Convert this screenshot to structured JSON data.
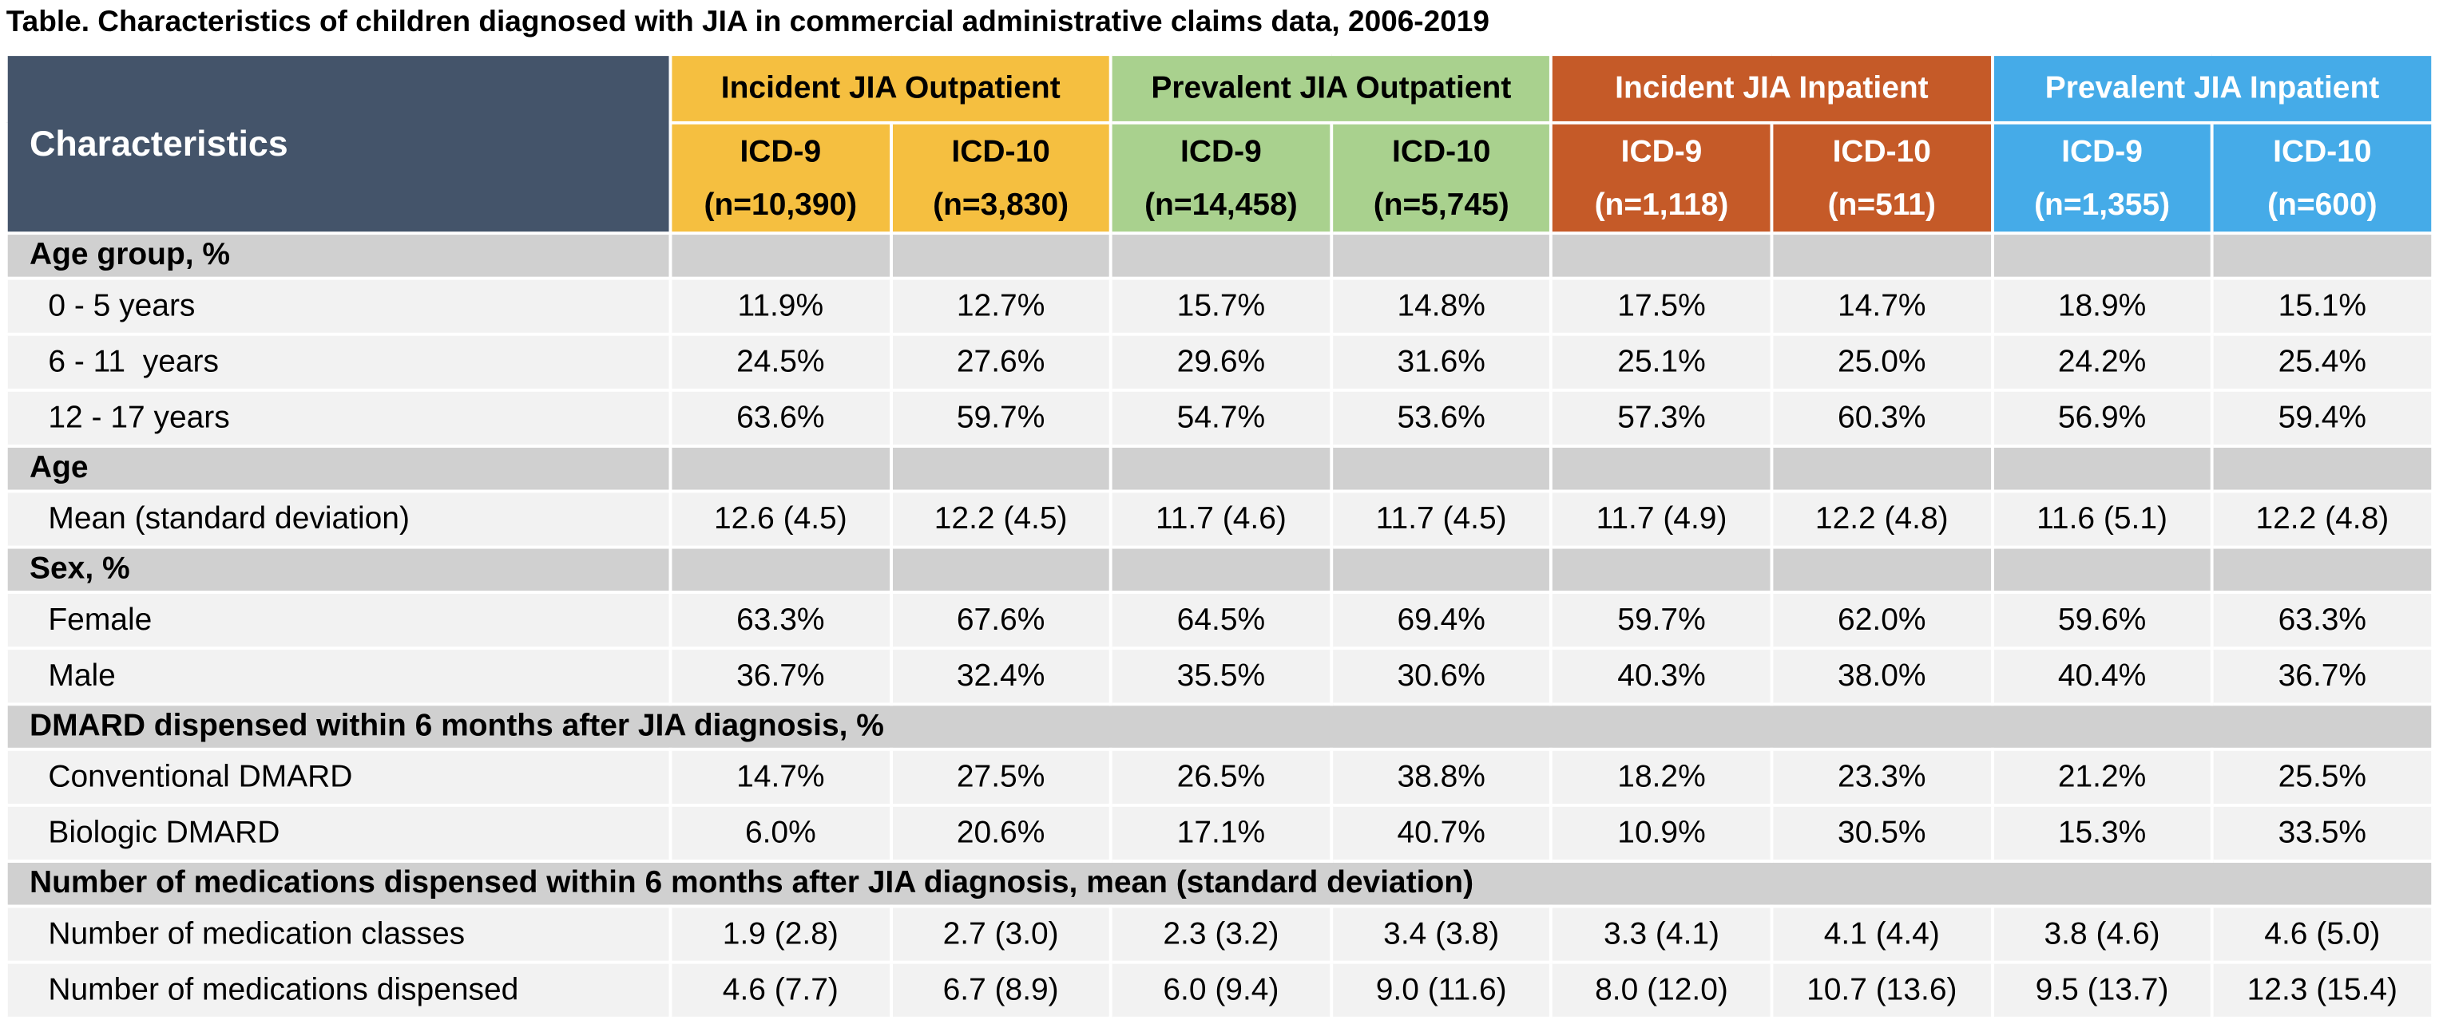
{
  "title": "Table. Characteristics of children diagnosed with JIA in commercial administrative claims data, 2006-2019",
  "table": {
    "header": {
      "characteristics": "Characteristics",
      "groups": [
        {
          "label": "Incident JIA Outpatient",
          "color": "#f5bf40",
          "text_color": "#000000",
          "columns": [
            {
              "code": "ICD-9",
              "n": "(n=10,390)"
            },
            {
              "code": "ICD-10",
              "n": "(n=3,830)"
            }
          ]
        },
        {
          "label": "Prevalent JIA Outpatient",
          "color": "#a9d18e",
          "text_color": "#000000",
          "columns": [
            {
              "code": "ICD-9",
              "n": "(n=14,458)"
            },
            {
              "code": "ICD-10",
              "n": "(n=5,745)"
            }
          ]
        },
        {
          "label": "Incident JIA Inpatient",
          "color": "#c55a28",
          "text_color": "#ffffff",
          "columns": [
            {
              "code": "ICD-9",
              "n": "(n=1,118)"
            },
            {
              "code": "ICD-10",
              "n": "(n=511)"
            }
          ]
        },
        {
          "label": "Prevalent JIA Inpatient",
          "color": "#45abe8",
          "text_color": "#ffffff",
          "columns": [
            {
              "code": "ICD-9",
              "n": "(n=1,355)"
            },
            {
              "code": "ICD-10",
              "n": "(n=600)"
            }
          ]
        }
      ]
    },
    "sections": [
      {
        "label": "Age group, %",
        "rows": [
          {
            "label": "0 - 5 years",
            "values": [
              "11.9%",
              "12.7%",
              "15.7%",
              "14.8%",
              "17.5%",
              "14.7%",
              "18.9%",
              "15.1%"
            ]
          },
          {
            "label": "6 - 11  years",
            "values": [
              "24.5%",
              "27.6%",
              "29.6%",
              "31.6%",
              "25.1%",
              "25.0%",
              "24.2%",
              "25.4%"
            ]
          },
          {
            "label": "12 - 17 years",
            "values": [
              "63.6%",
              "59.7%",
              "54.7%",
              "53.6%",
              "57.3%",
              "60.3%",
              "56.9%",
              "59.4%"
            ]
          }
        ]
      },
      {
        "label": "Age",
        "rows": [
          {
            "label": "Mean (standard deviation)",
            "values": [
              "12.6 (4.5)",
              "12.2 (4.5)",
              "11.7 (4.6)",
              "11.7 (4.5)",
              "11.7 (4.9)",
              "12.2 (4.8)",
              "11.6 (5.1)",
              "12.2 (4.8)"
            ]
          }
        ]
      },
      {
        "label": "Sex, %",
        "rows": [
          {
            "label": "Female",
            "values": [
              "63.3%",
              "67.6%",
              "64.5%",
              "69.4%",
              "59.7%",
              "62.0%",
              "59.6%",
              "63.3%"
            ]
          },
          {
            "label": "Male",
            "values": [
              "36.7%",
              "32.4%",
              "35.5%",
              "30.6%",
              "40.3%",
              "38.0%",
              "40.4%",
              "36.7%"
            ]
          }
        ]
      },
      {
        "label": "DMARD dispensed within 6 months after JIA diagnosis, %",
        "rows": [
          {
            "label": "Conventional DMARD",
            "values": [
              "14.7%",
              "27.5%",
              "26.5%",
              "38.8%",
              "18.2%",
              "23.3%",
              "21.2%",
              "25.5%"
            ]
          },
          {
            "label": "Biologic DMARD",
            "values": [
              "6.0%",
              "20.6%",
              "17.1%",
              "40.7%",
              "10.9%",
              "30.5%",
              "15.3%",
              "33.5%"
            ]
          }
        ]
      },
      {
        "label": "Number of medications dispensed within 6 months after JIA diagnosis, mean (standard deviation)",
        "rows": [
          {
            "label": "Number of medication classes",
            "values": [
              "1.9 (2.8)",
              "2.7 (3.0)",
              "2.3 (3.2)",
              "3.4 (3.8)",
              "3.3 (4.1)",
              "4.1 (4.4)",
              "3.8 (4.6)",
              "4.6 (5.0)"
            ]
          },
          {
            "label": "Number of medications dispensed",
            "values": [
              "4.6 (7.7)",
              "6.7 (8.9)",
              "6.0 (9.4)",
              "9.0 (11.6)",
              "8.0 (12.0)",
              "10.7 (13.6)",
              "9.5 (13.7)",
              "12.3 (15.4)"
            ]
          }
        ]
      }
    ]
  }
}
